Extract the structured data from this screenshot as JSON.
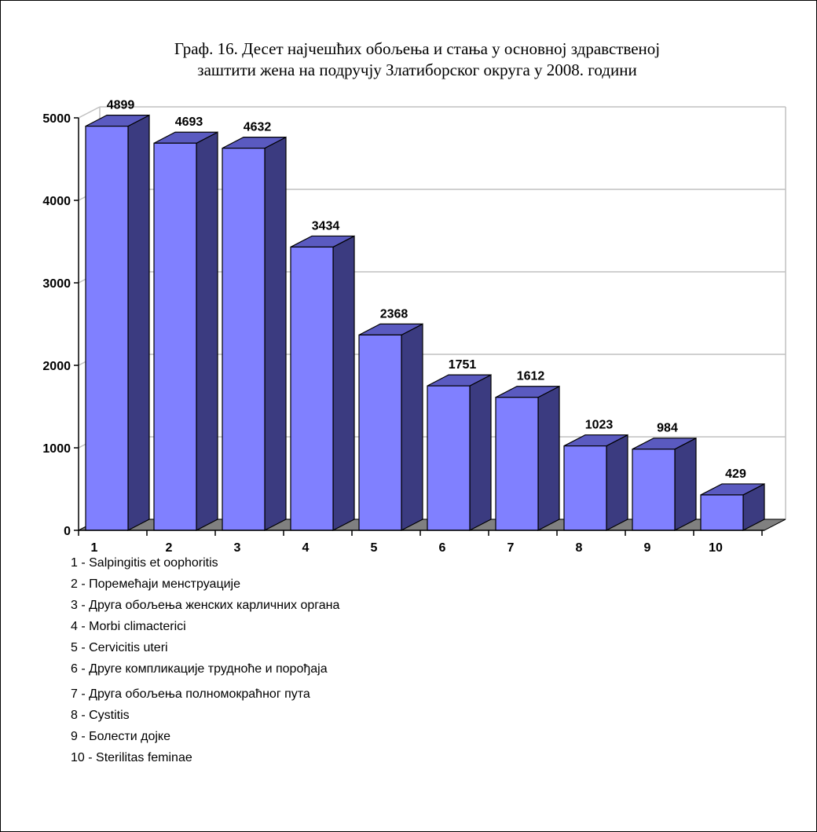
{
  "chart_data": {
    "type": "bar",
    "title": [
      "Граф. 16. Десет најчешћих обољења и стања у основној здравственој",
      "заштити жена на подручју Златиборског округа у 2008. години"
    ],
    "categories": [
      "1",
      "2",
      "3",
      "4",
      "5",
      "6",
      "7",
      "8",
      "9",
      "10"
    ],
    "values": [
      4899,
      4693,
      4632,
      3434,
      2368,
      1751,
      1612,
      1023,
      984,
      429
    ],
    "y_ticks": [
      "0",
      "1000",
      "2000",
      "3000",
      "4000",
      "5000"
    ],
    "ylim": [
      0,
      5000
    ],
    "grid": true,
    "three_d": true,
    "colors": {
      "front": "#8080FF",
      "side": "#3B3B80",
      "top": "#5A5AC0",
      "floor": "#808080",
      "grid": "#C0C0C0"
    }
  },
  "legend": [
    "1 - Salpingitis et oophoritis",
    "2 - Поремећаји менструације",
    "3 - Друга обољења женских карличних органа",
    "4 - Morbi climacterici",
    "5 - Cervicitis uteri",
    "6 - Друге компликације трудноће и порођаја",
    "7 - Друга обољења полномокраћног пута",
    "8 - Cystitis",
    "9 - Болести дојке",
    "10 - Sterilitas feminae"
  ]
}
